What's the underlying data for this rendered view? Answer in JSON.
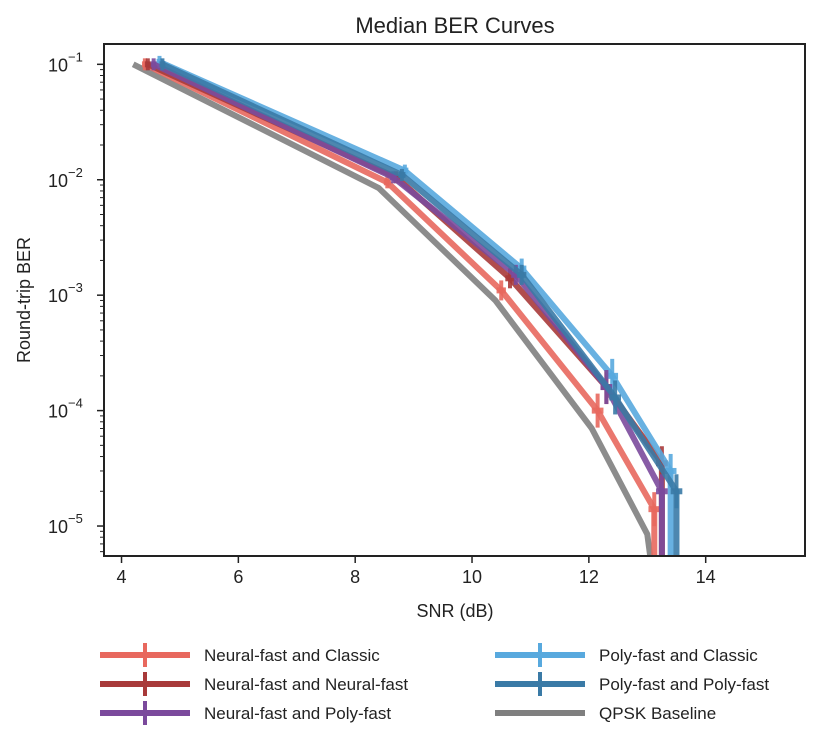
{
  "chart_data": {
    "type": "line",
    "title": "Median BER Curves",
    "xlabel": "SNR (dB)",
    "ylabel": "Round-trip BER",
    "xlim": [
      3.7,
      15.7
    ],
    "ylim": [
      5.5e-06,
      0.15
    ],
    "yscale": "log",
    "xticks": [
      4,
      6,
      8,
      10,
      12,
      14
    ],
    "xtick_labels": [
      "4",
      "6",
      "8",
      "10",
      "12",
      "14"
    ],
    "yticks": [
      0.1,
      0.01,
      0.001,
      0.0001,
      1e-05
    ],
    "ytick_labels": [
      {
        "base": "10",
        "exp": "−1"
      },
      {
        "base": "10",
        "exp": "−2"
      },
      {
        "base": "10",
        "exp": "−3"
      },
      {
        "base": "10",
        "exp": "−4"
      },
      {
        "base": "10",
        "exp": "−5"
      }
    ],
    "grid": false,
    "legend_position": "below",
    "series": [
      {
        "name": "Neural-fast and Classic",
        "color": "#e8685e",
        "errorbars": true,
        "x": [
          4.4,
          8.55,
          10.5,
          12.15,
          13.12,
          13.12
        ],
        "y": [
          0.1,
          0.0095,
          0.0011,
          0.0001,
          1.4e-05,
          5.5e-06
        ],
        "xerr": [
          0.05,
          0.06,
          0.08,
          0.1,
          0.1,
          0.0
        ]
      },
      {
        "name": "Neural-fast and Neural-fast",
        "color": "#a83a3a",
        "errorbars": true,
        "x": [
          4.45,
          8.7,
          10.65,
          12.3,
          13.25,
          13.25
        ],
        "y": [
          0.1,
          0.0105,
          0.0014,
          0.00016,
          3.5e-05,
          5.5e-06
        ],
        "xerr": [
          0.05,
          0.06,
          0.08,
          0.1,
          0.1,
          0.0
        ]
      },
      {
        "name": "Neural-fast and Poly-fast",
        "color": "#7b4a9c",
        "errorbars": true,
        "x": [
          4.55,
          8.65,
          10.75,
          12.3,
          13.25,
          13.25
        ],
        "y": [
          0.1,
          0.0105,
          0.0015,
          0.00016,
          2e-05,
          5.5e-06
        ],
        "xerr": [
          0.05,
          0.06,
          0.08,
          0.1,
          0.1,
          0.0
        ]
      },
      {
        "name": "Poly-fast and Classic",
        "color": "#58a9de",
        "errorbars": true,
        "x": [
          4.65,
          8.85,
          10.85,
          12.4,
          13.4,
          13.4
        ],
        "y": [
          0.105,
          0.012,
          0.0017,
          0.0002,
          3e-05,
          5.5e-06
        ],
        "xerr": [
          0.05,
          0.06,
          0.08,
          0.1,
          0.1,
          0.0
        ]
      },
      {
        "name": "Poly-fast and Poly-fast",
        "color": "#3a7aa6",
        "errorbars": true,
        "x": [
          4.7,
          8.8,
          10.85,
          12.45,
          13.5,
          13.5
        ],
        "y": [
          0.1,
          0.011,
          0.0015,
          0.00013,
          2e-05,
          5.5e-06
        ],
        "xerr": [
          0.05,
          0.06,
          0.08,
          0.1,
          0.1,
          0.0
        ]
      },
      {
        "name": "QPSK Baseline",
        "color": "#7f7f7f",
        "errorbars": false,
        "x": [
          4.2,
          8.4,
          10.4,
          12.05,
          13.0,
          13.05
        ],
        "y": [
          0.1,
          0.0085,
          0.0009,
          7e-05,
          8.5e-06,
          5.5e-06
        ],
        "xerr": [
          0,
          0,
          0,
          0,
          0,
          0
        ]
      }
    ]
  }
}
